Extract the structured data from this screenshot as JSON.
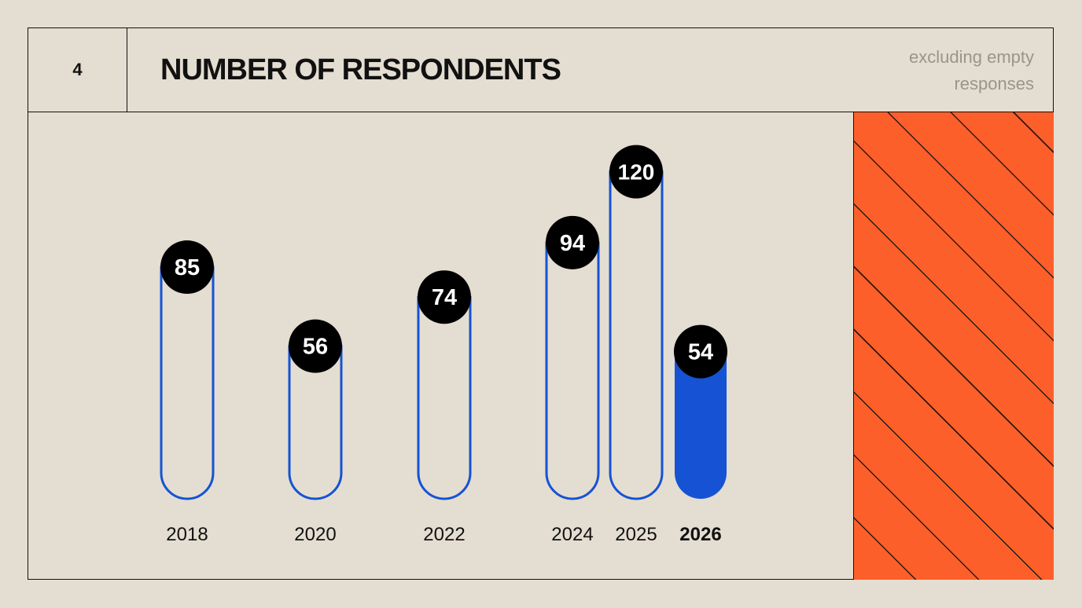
{
  "header": {
    "page_number": "4",
    "title": "NUMBER OF RESPONDENTS",
    "note_line1": "excluding empty",
    "note_line2": "responses"
  },
  "colors": {
    "background": "#e4ddd1",
    "accent_blue": "#1553d4",
    "badge_black": "#000000",
    "orange": "#fd5f2a"
  },
  "chart_data": {
    "type": "bar",
    "categories": [
      "2018",
      "2020",
      "2022",
      "2024",
      "2025",
      "2026"
    ],
    "values": [
      85,
      56,
      74,
      94,
      120,
      54
    ],
    "highlighted_category": "2026",
    "title": "NUMBER OF RESPONDENTS",
    "subtitle": "excluding empty responses",
    "xlabel": "",
    "ylabel": "",
    "grid": false,
    "legend": "none"
  }
}
